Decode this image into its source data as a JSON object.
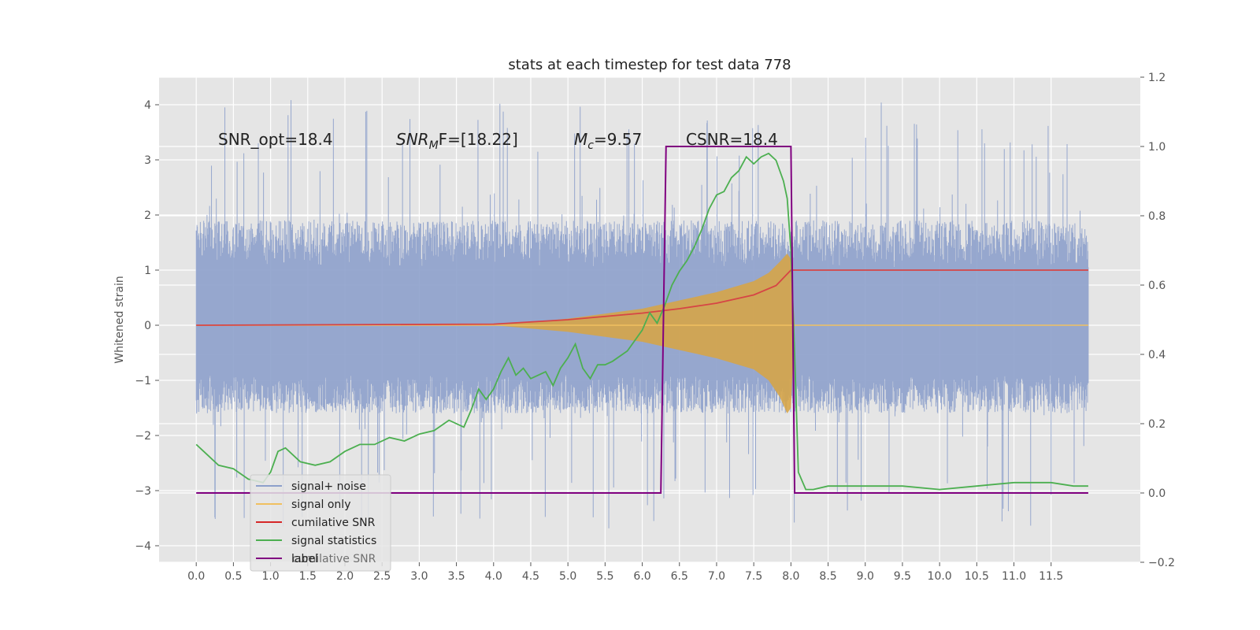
{
  "chart_data": {
    "type": "line",
    "title": "stats at each timestep for test data 778",
    "ylabel": "Whitened strain",
    "xlabel": "",
    "xlim": [
      -0.5,
      12.7
    ],
    "ylim": [
      -4.3,
      4.5
    ],
    "y2lim": [
      -0.2,
      1.2
    ],
    "xticks": [
      "0.0",
      "0.5",
      "1.0",
      "1.5",
      "2.0",
      "2.5",
      "3.0",
      "3.5",
      "4.0",
      "4.5",
      "5.0",
      "5.5",
      "6.0",
      "6.5",
      "7.0",
      "7.5",
      "8.0",
      "8.5",
      "9.0",
      "9.5",
      "10.0",
      "10.5",
      "11.0",
      "11.5"
    ],
    "yticks": [
      "4",
      "3",
      "2",
      "1",
      "0",
      "−1",
      "−2",
      "−3",
      "−4"
    ],
    "y2ticks": [
      "1.2",
      "1.0",
      "0.8",
      "0.6",
      "0.4",
      "0.2",
      "0.0",
      "−0.2"
    ],
    "grid": true,
    "annotations": [
      {
        "id": "snr_opt",
        "text": "SNR_opt=18.4"
      },
      {
        "id": "snr_mf",
        "text": "SNR_MF=[18.22]",
        "main": "SNR",
        "sub": "M",
        "tail": "F=[18.22]"
      },
      {
        "id": "mc",
        "text": "M_c=9.57",
        "main": "M",
        "sub": "c",
        "tail": "=9.57"
      },
      {
        "id": "csnr",
        "text": "CSNR=18.4"
      }
    ],
    "legend": {
      "placement": "lower-left",
      "entries": [
        {
          "label": "signal+ noise",
          "color": "#8da0cb"
        },
        {
          "label": "signal only",
          "color": "#f0c060"
        },
        {
          "label": "cumilative SNR",
          "color": "#d62728"
        },
        {
          "label": "signal statistics",
          "color": "#4caf50"
        },
        {
          "label": "label",
          "color": "#800080"
        }
      ],
      "hidden_text": "cumilative SNR"
    },
    "series": [
      {
        "name": "signal+ noise",
        "axis": "left",
        "color": "#8da0cb",
        "style": "dense-noise",
        "x_range": [
          0.0,
          12.0
        ],
        "band": [
          -1.6,
          1.9
        ],
        "peak_max": 4.1,
        "peak_min": -3.7
      },
      {
        "name": "signal only",
        "axis": "left",
        "color": "#d9a441",
        "style": "chirp-envelope",
        "x": [
          4.0,
          5.0,
          6.0,
          6.5,
          7.0,
          7.5,
          7.7,
          7.85,
          7.95,
          8.0,
          8.05,
          12.0
        ],
        "upper": [
          0.0,
          0.12,
          0.3,
          0.45,
          0.6,
          0.8,
          0.95,
          1.15,
          1.3,
          1.2,
          0.0,
          0.0
        ],
        "lower": [
          0.0,
          -0.12,
          -0.3,
          -0.45,
          -0.6,
          -0.8,
          -1.0,
          -1.3,
          -1.6,
          -1.5,
          0.0,
          0.0
        ]
      },
      {
        "name": "cumilative SNR",
        "axis": "left",
        "color": "#d64545",
        "x": [
          0.0,
          4.0,
          5.0,
          6.0,
          6.5,
          7.0,
          7.5,
          7.8,
          8.0,
          12.0
        ],
        "values": [
          0.0,
          0.02,
          0.1,
          0.22,
          0.3,
          0.4,
          0.55,
          0.72,
          1.0,
          1.0
        ]
      },
      {
        "name": "signal statistics",
        "axis": "right",
        "color": "#4caf50",
        "x": [
          0.0,
          0.1,
          0.3,
          0.5,
          0.7,
          0.9,
          1.0,
          1.1,
          1.2,
          1.4,
          1.6,
          1.8,
          2.0,
          2.2,
          2.4,
          2.6,
          2.8,
          3.0,
          3.2,
          3.4,
          3.6,
          3.7,
          3.8,
          3.9,
          4.0,
          4.1,
          4.2,
          4.3,
          4.4,
          4.5,
          4.6,
          4.7,
          4.8,
          4.9,
          5.0,
          5.1,
          5.2,
          5.3,
          5.4,
          5.5,
          5.6,
          5.8,
          6.0,
          6.1,
          6.2,
          6.3,
          6.4,
          6.5,
          6.6,
          6.7,
          6.8,
          6.9,
          7.0,
          7.1,
          7.2,
          7.3,
          7.4,
          7.5,
          7.6,
          7.7,
          7.8,
          7.9,
          7.95,
          8.0,
          8.05,
          8.1,
          8.2,
          8.3,
          8.5,
          9.0,
          9.5,
          10.0,
          10.5,
          11.0,
          11.5,
          11.8,
          12.0
        ],
        "values": [
          0.14,
          0.12,
          0.08,
          0.07,
          0.04,
          0.03,
          0.06,
          0.12,
          0.13,
          0.09,
          0.08,
          0.09,
          0.12,
          0.14,
          0.14,
          0.16,
          0.15,
          0.17,
          0.18,
          0.21,
          0.19,
          0.24,
          0.3,
          0.27,
          0.3,
          0.35,
          0.39,
          0.34,
          0.36,
          0.33,
          0.34,
          0.35,
          0.31,
          0.36,
          0.39,
          0.43,
          0.36,
          0.33,
          0.37,
          0.37,
          0.38,
          0.41,
          0.47,
          0.52,
          0.49,
          0.54,
          0.6,
          0.64,
          0.67,
          0.71,
          0.76,
          0.82,
          0.86,
          0.87,
          0.91,
          0.93,
          0.97,
          0.95,
          0.97,
          0.98,
          0.96,
          0.9,
          0.85,
          0.7,
          0.4,
          0.06,
          0.01,
          0.01,
          0.02,
          0.02,
          0.02,
          0.01,
          0.02,
          0.03,
          0.03,
          0.02,
          0.02
        ]
      },
      {
        "name": "label",
        "axis": "right",
        "color": "#800080",
        "x": [
          0.0,
          6.25,
          6.32,
          8.0,
          8.05,
          12.0
        ],
        "values": [
          0.0,
          0.0,
          1.0,
          1.0,
          0.0,
          0.0
        ]
      }
    ]
  }
}
